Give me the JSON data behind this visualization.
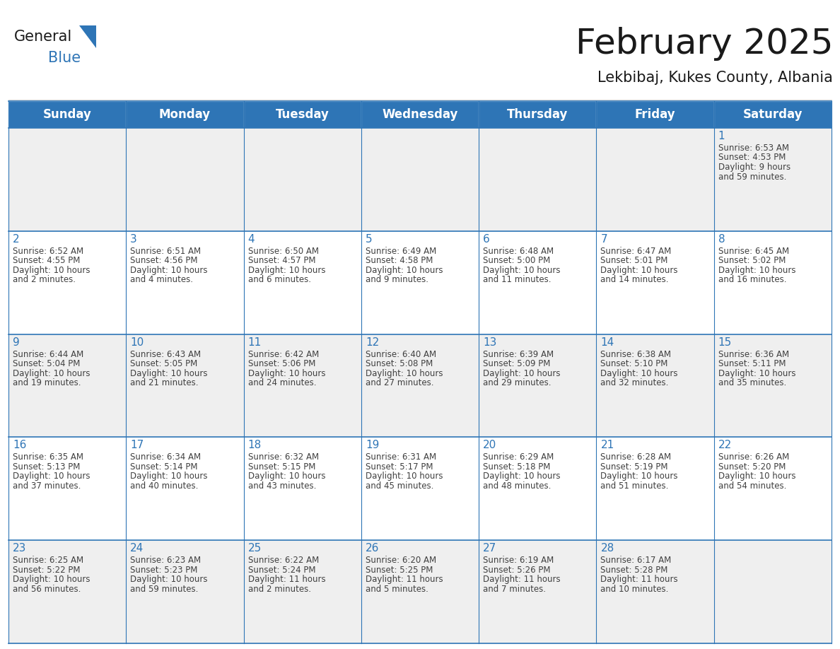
{
  "title": "February 2025",
  "subtitle": "Lekbibaj, Kukes County, Albania",
  "header_color": "#2E75B6",
  "header_text_color": "#FFFFFF",
  "cell_bg_even": "#EFEFEF",
  "cell_bg_odd": "#FFFFFF",
  "day_number_color": "#2E75B6",
  "text_color": "#404040",
  "border_color": "#2E75B6",
  "sep_line_color": "#2E75B6",
  "days_of_week": [
    "Sunday",
    "Monday",
    "Tuesday",
    "Wednesday",
    "Thursday",
    "Friday",
    "Saturday"
  ],
  "calendar_data": [
    [
      null,
      null,
      null,
      null,
      null,
      null,
      {
        "day": 1,
        "sunrise": "6:53 AM",
        "sunset": "4:53 PM",
        "daylight": "9 hours and 59 minutes."
      }
    ],
    [
      {
        "day": 2,
        "sunrise": "6:52 AM",
        "sunset": "4:55 PM",
        "daylight": "10 hours and 2 minutes."
      },
      {
        "day": 3,
        "sunrise": "6:51 AM",
        "sunset": "4:56 PM",
        "daylight": "10 hours and 4 minutes."
      },
      {
        "day": 4,
        "sunrise": "6:50 AM",
        "sunset": "4:57 PM",
        "daylight": "10 hours and 6 minutes."
      },
      {
        "day": 5,
        "sunrise": "6:49 AM",
        "sunset": "4:58 PM",
        "daylight": "10 hours and 9 minutes."
      },
      {
        "day": 6,
        "sunrise": "6:48 AM",
        "sunset": "5:00 PM",
        "daylight": "10 hours and 11 minutes."
      },
      {
        "day": 7,
        "sunrise": "6:47 AM",
        "sunset": "5:01 PM",
        "daylight": "10 hours and 14 minutes."
      },
      {
        "day": 8,
        "sunrise": "6:45 AM",
        "sunset": "5:02 PM",
        "daylight": "10 hours and 16 minutes."
      }
    ],
    [
      {
        "day": 9,
        "sunrise": "6:44 AM",
        "sunset": "5:04 PM",
        "daylight": "10 hours and 19 minutes."
      },
      {
        "day": 10,
        "sunrise": "6:43 AM",
        "sunset": "5:05 PM",
        "daylight": "10 hours and 21 minutes."
      },
      {
        "day": 11,
        "sunrise": "6:42 AM",
        "sunset": "5:06 PM",
        "daylight": "10 hours and 24 minutes."
      },
      {
        "day": 12,
        "sunrise": "6:40 AM",
        "sunset": "5:08 PM",
        "daylight": "10 hours and 27 minutes."
      },
      {
        "day": 13,
        "sunrise": "6:39 AM",
        "sunset": "5:09 PM",
        "daylight": "10 hours and 29 minutes."
      },
      {
        "day": 14,
        "sunrise": "6:38 AM",
        "sunset": "5:10 PM",
        "daylight": "10 hours and 32 minutes."
      },
      {
        "day": 15,
        "sunrise": "6:36 AM",
        "sunset": "5:11 PM",
        "daylight": "10 hours and 35 minutes."
      }
    ],
    [
      {
        "day": 16,
        "sunrise": "6:35 AM",
        "sunset": "5:13 PM",
        "daylight": "10 hours and 37 minutes."
      },
      {
        "day": 17,
        "sunrise": "6:34 AM",
        "sunset": "5:14 PM",
        "daylight": "10 hours and 40 minutes."
      },
      {
        "day": 18,
        "sunrise": "6:32 AM",
        "sunset": "5:15 PM",
        "daylight": "10 hours and 43 minutes."
      },
      {
        "day": 19,
        "sunrise": "6:31 AM",
        "sunset": "5:17 PM",
        "daylight": "10 hours and 45 minutes."
      },
      {
        "day": 20,
        "sunrise": "6:29 AM",
        "sunset": "5:18 PM",
        "daylight": "10 hours and 48 minutes."
      },
      {
        "day": 21,
        "sunrise": "6:28 AM",
        "sunset": "5:19 PM",
        "daylight": "10 hours and 51 minutes."
      },
      {
        "day": 22,
        "sunrise": "6:26 AM",
        "sunset": "5:20 PM",
        "daylight": "10 hours and 54 minutes."
      }
    ],
    [
      {
        "day": 23,
        "sunrise": "6:25 AM",
        "sunset": "5:22 PM",
        "daylight": "10 hours and 56 minutes."
      },
      {
        "day": 24,
        "sunrise": "6:23 AM",
        "sunset": "5:23 PM",
        "daylight": "10 hours and 59 minutes."
      },
      {
        "day": 25,
        "sunrise": "6:22 AM",
        "sunset": "5:24 PM",
        "daylight": "11 hours and 2 minutes."
      },
      {
        "day": 26,
        "sunrise": "6:20 AM",
        "sunset": "5:25 PM",
        "daylight": "11 hours and 5 minutes."
      },
      {
        "day": 27,
        "sunrise": "6:19 AM",
        "sunset": "5:26 PM",
        "daylight": "11 hours and 7 minutes."
      },
      {
        "day": 28,
        "sunrise": "6:17 AM",
        "sunset": "5:28 PM",
        "daylight": "11 hours and 10 minutes."
      },
      null
    ]
  ],
  "logo_text_general": "General",
  "logo_text_blue": "Blue",
  "logo_triangle_color": "#2E75B6",
  "title_fontsize": 36,
  "subtitle_fontsize": 15,
  "header_fontsize": 12,
  "day_num_fontsize": 11,
  "cell_text_fontsize": 8.5
}
